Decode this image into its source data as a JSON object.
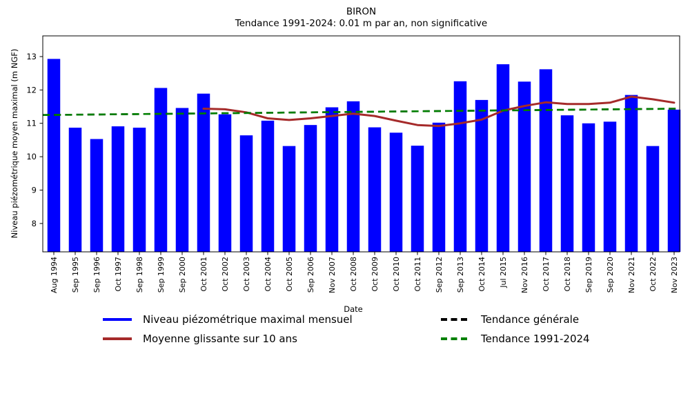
{
  "chart_data": {
    "type": "bar",
    "title": "BIRON",
    "subtitle": "Tendance 1991-2024: 0.01 m par an, non significative",
    "xlabel": "Date",
    "ylabel": "Niveau piézométrique moyen maximal (m NGF)",
    "ylim": [
      7.15,
      13.62
    ],
    "yticks": [
      8,
      9,
      10,
      11,
      12,
      13
    ],
    "grid": false,
    "xticklabel_rotation": 90,
    "legend_position": "below-plot-2-columns",
    "categories": [
      "Aug 1994",
      "Sep 1995",
      "Sep 1996",
      "Oct 1997",
      "Sep 1998",
      "Sep 1999",
      "Sep 2000",
      "Oct 2001",
      "Oct 2002",
      "Oct 2003",
      "Oct 2004",
      "Oct 2005",
      "Sep 2006",
      "Nov 2007",
      "Oct 2008",
      "Oct 2009",
      "Oct 2010",
      "Oct 2011",
      "Sep 2012",
      "Sep 2013",
      "Oct 2014",
      "Jul 2015",
      "Nov 2016",
      "Oct 2017",
      "Oct 2018",
      "Sep 2019",
      "Sep 2020",
      "Nov 2021",
      "Oct 2022",
      "Nov 2023"
    ],
    "series": [
      {
        "name": "Niveau piézométrique maximal mensuel",
        "type": "bar",
        "color": "#0000ff",
        "values": [
          12.93,
          10.87,
          10.53,
          10.91,
          10.87,
          12.06,
          11.46,
          11.89,
          11.27,
          10.64,
          11.08,
          10.32,
          10.95,
          11.48,
          11.66,
          10.88,
          10.72,
          10.33,
          11.02,
          12.26,
          11.7,
          12.77,
          12.25,
          12.62,
          11.24,
          11.0,
          11.05,
          11.85,
          10.32,
          11.41
        ]
      },
      {
        "name": "Moyenne glissante sur 10 ans",
        "type": "line",
        "color": "#a52a2a",
        "start_index": 7,
        "values": [
          11.44,
          11.42,
          11.33,
          11.15,
          11.1,
          11.15,
          11.22,
          11.29,
          11.22,
          11.08,
          10.95,
          10.92,
          11.0,
          11.11,
          11.38,
          11.52,
          11.63,
          11.58,
          11.58,
          11.62,
          11.8,
          11.72,
          11.62
        ]
      },
      {
        "name": "Tendance générale",
        "type": "trend",
        "color": "#000000",
        "dashed": true,
        "y_start": 11.25,
        "y_end": 11.44,
        "overlapped_by_green_trend": true
      },
      {
        "name": "Tendance 1991-2024",
        "type": "trend",
        "color": "#008000",
        "dashed": true,
        "y_start": 11.25,
        "y_end": 11.44
      }
    ],
    "legend": {
      "entries": [
        {
          "label": "Niveau piézométrique maximal mensuel",
          "color": "#0000ff",
          "dashed": false
        },
        {
          "label": "Moyenne glissante sur 10 ans",
          "color": "#a52a2a",
          "dashed": false
        },
        {
          "label": "Tendance générale",
          "color": "#000000",
          "dashed": true
        },
        {
          "label": "Tendance 1991-2024",
          "color": "#008000",
          "dashed": true
        }
      ]
    }
  }
}
